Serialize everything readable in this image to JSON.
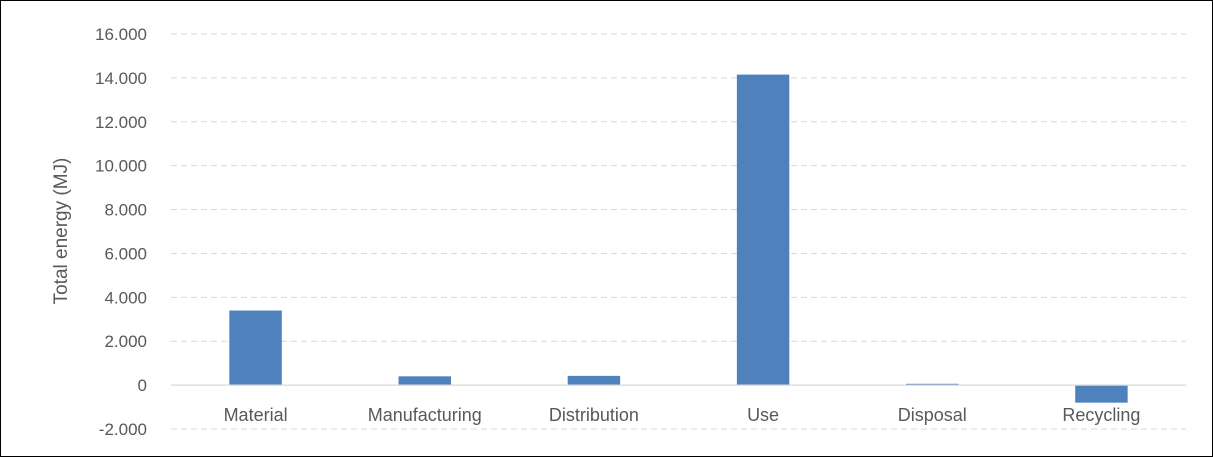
{
  "chart_data": {
    "type": "bar",
    "title": "",
    "xlabel": "",
    "ylabel": "Total energy (MJ)",
    "categories": [
      "Material",
      "Manufacturing",
      "Distribution",
      "Use",
      "Disposal",
      "Recycling"
    ],
    "series": [
      {
        "values": [
          3400,
          400,
          420,
          14150,
          60,
          -800
        ]
      }
    ],
    "ylim": [
      -2000,
      16000
    ],
    "yticks": [
      -2000,
      0,
      2000,
      4000,
      6000,
      8000,
      10000,
      12000,
      14000,
      16000
    ],
    "ytick_labels": [
      "-2.000",
      "0",
      "2.000",
      "4.000",
      "6.000",
      "8.000",
      "10.000",
      "12.000",
      "14.000",
      "16.000"
    ],
    "grid": true,
    "grid_style": "dashed",
    "legend": "none",
    "bar_color": "#4F81BD",
    "gridline_color": "#D9D9D9",
    "zero_line_color": "#D9D9D9",
    "text_color": "#595959"
  }
}
